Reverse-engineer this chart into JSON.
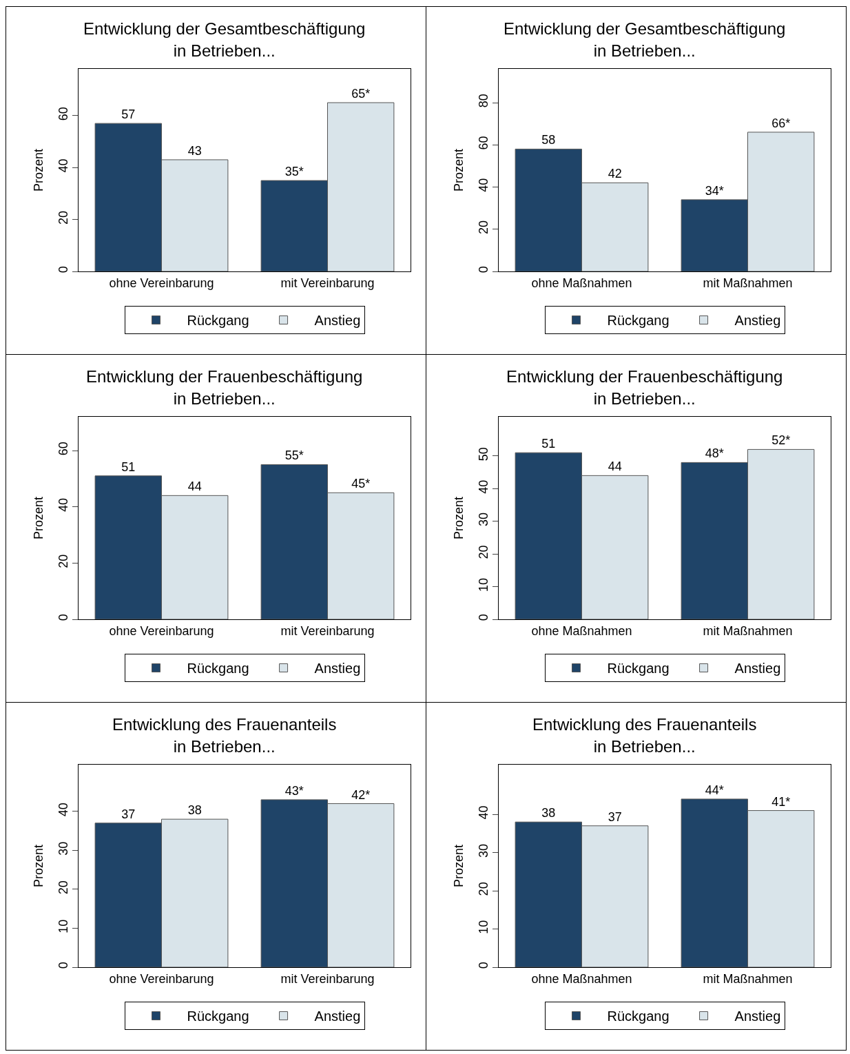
{
  "chart_data": [
    {
      "type": "bar",
      "title": "Entwicklung der Gesamtbeschäftigung\nin Betrieben...",
      "ylabel": "Prozent",
      "categories": [
        "ohne Vereinbarung",
        "mit Vereinbarung"
      ],
      "series": [
        {
          "name": "Rückgang",
          "color": "#1f4468",
          "values": [
            57,
            35
          ],
          "value_labels": [
            "57",
            "35*"
          ]
        },
        {
          "name": "Anstieg",
          "color": "#d9e4ea",
          "values": [
            43,
            65
          ],
          "value_labels": [
            "43",
            "65*"
          ]
        }
      ],
      "ylim": [
        0,
        78
      ],
      "yticks": [
        0,
        20,
        40,
        60
      ],
      "grid": false,
      "legend": "bottom"
    },
    {
      "type": "bar",
      "title": "Entwicklung der Gesamtbeschäftigung\nin Betrieben...",
      "ylabel": "Prozent",
      "categories": [
        "ohne Maßnahmen",
        "mit Maßnahmen"
      ],
      "series": [
        {
          "name": "Rückgang",
          "color": "#1f4468",
          "values": [
            58,
            34
          ],
          "value_labels": [
            "58",
            "34*"
          ]
        },
        {
          "name": "Anstieg",
          "color": "#d9e4ea",
          "values": [
            42,
            66
          ],
          "value_labels": [
            "42",
            "66*"
          ]
        }
      ],
      "ylim": [
        0,
        96
      ],
      "yticks": [
        0,
        20,
        40,
        60,
        80
      ],
      "grid": false,
      "legend": "bottom"
    },
    {
      "type": "bar",
      "title": "Entwicklung der Frauenbeschäftigung\nin Betrieben...",
      "ylabel": "Prozent",
      "categories": [
        "ohne Vereinbarung",
        "mit Vereinbarung"
      ],
      "series": [
        {
          "name": "Rückgang",
          "color": "#1f4468",
          "values": [
            51,
            55
          ],
          "value_labels": [
            "51",
            "55*"
          ]
        },
        {
          "name": "Anstieg",
          "color": "#d9e4ea",
          "values": [
            44,
            45
          ],
          "value_labels": [
            "44",
            "45*"
          ]
        }
      ],
      "ylim": [
        0,
        72
      ],
      "yticks": [
        0,
        20,
        40,
        60
      ],
      "grid": false,
      "legend": "bottom"
    },
    {
      "type": "bar",
      "title": "Entwicklung der Frauenbeschäftigung\nin Betrieben...",
      "ylabel": "Prozent",
      "categories": [
        "ohne Maßnahmen",
        "mit Maßnahmen"
      ],
      "series": [
        {
          "name": "Rückgang",
          "color": "#1f4468",
          "values": [
            51,
            48
          ],
          "value_labels": [
            "51",
            "48*"
          ]
        },
        {
          "name": "Anstieg",
          "color": "#d9e4ea",
          "values": [
            44,
            52
          ],
          "value_labels": [
            "44",
            "52*"
          ]
        }
      ],
      "ylim": [
        0,
        62
      ],
      "yticks": [
        0,
        10,
        20,
        30,
        40,
        50
      ],
      "grid": false,
      "legend": "bottom"
    },
    {
      "type": "bar",
      "title": "Entwicklung des Frauenanteils\nin Betrieben...",
      "ylabel": "Prozent",
      "categories": [
        "ohne Vereinbarung",
        "mit Vereinbarung"
      ],
      "series": [
        {
          "name": "Rückgang",
          "color": "#1f4468",
          "values": [
            37,
            43
          ],
          "value_labels": [
            "37",
            "43*"
          ]
        },
        {
          "name": "Anstieg",
          "color": "#d9e4ea",
          "values": [
            38,
            42
          ],
          "value_labels": [
            "38",
            "42*"
          ]
        }
      ],
      "ylim": [
        0,
        52
      ],
      "yticks": [
        0,
        10,
        20,
        30,
        40
      ],
      "grid": false,
      "legend": "bottom"
    },
    {
      "type": "bar",
      "title": "Entwicklung des Frauenanteils\nin Betrieben...",
      "ylabel": "Prozent",
      "categories": [
        "ohne Maßnahmen",
        "mit Maßnahmen"
      ],
      "series": [
        {
          "name": "Rückgang",
          "color": "#1f4468",
          "values": [
            38,
            44
          ],
          "value_labels": [
            "38",
            "44*"
          ]
        },
        {
          "name": "Anstieg",
          "color": "#d9e4ea",
          "values": [
            37,
            41
          ],
          "value_labels": [
            "37",
            "41*"
          ]
        }
      ],
      "ylim": [
        0,
        53
      ],
      "yticks": [
        0,
        10,
        20,
        30,
        40
      ],
      "grid": false,
      "legend": "bottom"
    }
  ]
}
